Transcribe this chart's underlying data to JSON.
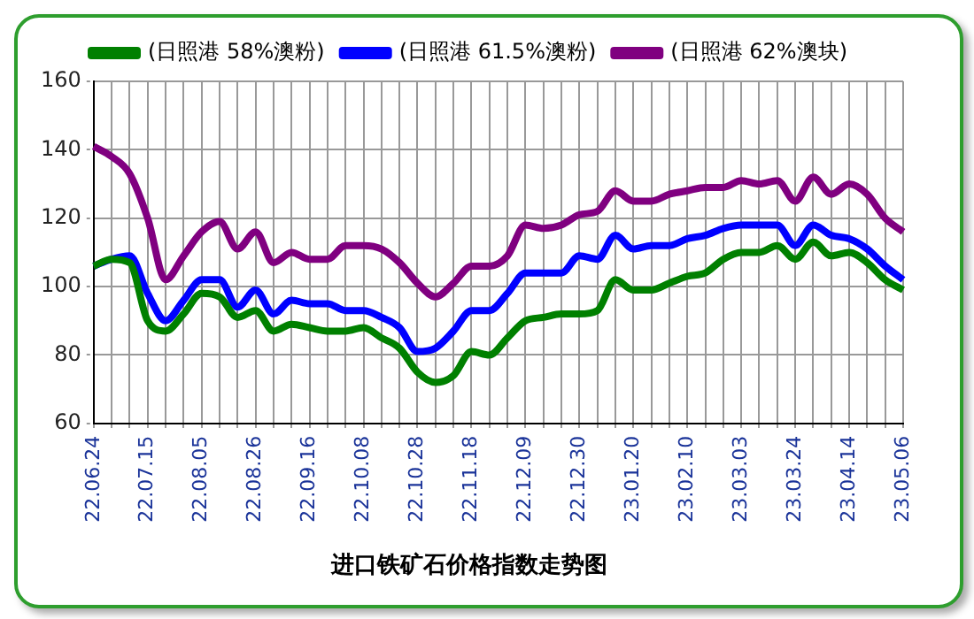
{
  "chart_data": {
    "type": "line",
    "title": "进口铁矿石价格指数走势图",
    "categories": [
      "22.06.24",
      null,
      null,
      "22.07.15",
      null,
      null,
      "22.08.05",
      null,
      null,
      "22.08.26",
      null,
      null,
      "22.09.16",
      null,
      null,
      "22.10.08",
      null,
      null,
      "22.10.28",
      null,
      null,
      "22.11.18",
      null,
      null,
      "22.12.09",
      null,
      null,
      "22.12.30",
      null,
      null,
      "23.01.20",
      null,
      null,
      "23.02.10",
      null,
      null,
      "23.03.03",
      null,
      null,
      "23.03.24",
      null,
      null,
      "23.04.14",
      null,
      null,
      "23.05.06"
    ],
    "series": [
      {
        "name": "(日照港 58%澳粉)",
        "color": "#008000",
        "values": [
          106,
          108,
          107,
          90,
          87,
          92,
          98,
          97,
          91,
          93,
          87,
          89,
          88,
          87,
          87,
          88,
          85,
          82,
          75,
          72,
          74,
          81,
          80,
          85,
          90,
          91,
          92,
          92,
          93,
          102,
          99,
          99,
          101,
          103,
          104,
          108,
          110,
          110,
          112,
          108,
          113,
          109,
          110,
          107,
          102,
          99
        ]
      },
      {
        "name": "(日照港 61.5%澳粉)",
        "color": "#0000ff",
        "values": [
          106,
          108,
          109,
          98,
          90,
          96,
          102,
          102,
          94,
          99,
          92,
          96,
          95,
          95,
          93,
          93,
          91,
          88,
          81,
          82,
          87,
          93,
          93,
          98,
          104,
          104,
          104,
          109,
          108,
          115,
          111,
          112,
          112,
          114,
          115,
          117,
          118,
          118,
          118,
          112,
          118,
          115,
          114,
          111,
          106,
          102
        ]
      },
      {
        "name": "(日照港 62%澳块)",
        "color": "#800080",
        "values": [
          141,
          138,
          133,
          120,
          102,
          109,
          116,
          119,
          111,
          116,
          107,
          110,
          108,
          108,
          112,
          112,
          111,
          107,
          101,
          97,
          101,
          106,
          106,
          109,
          118,
          117,
          118,
          121,
          122,
          128,
          125,
          125,
          127,
          128,
          129,
          129,
          131,
          130,
          131,
          125,
          132,
          127,
          130,
          127,
          120,
          116
        ]
      }
    ],
    "ylim": [
      60,
      160
    ],
    "yticks": [
      60,
      80,
      100,
      120,
      140,
      160
    ],
    "grid": true,
    "legend": "top",
    "marker": "none",
    "line_style": "solid"
  }
}
